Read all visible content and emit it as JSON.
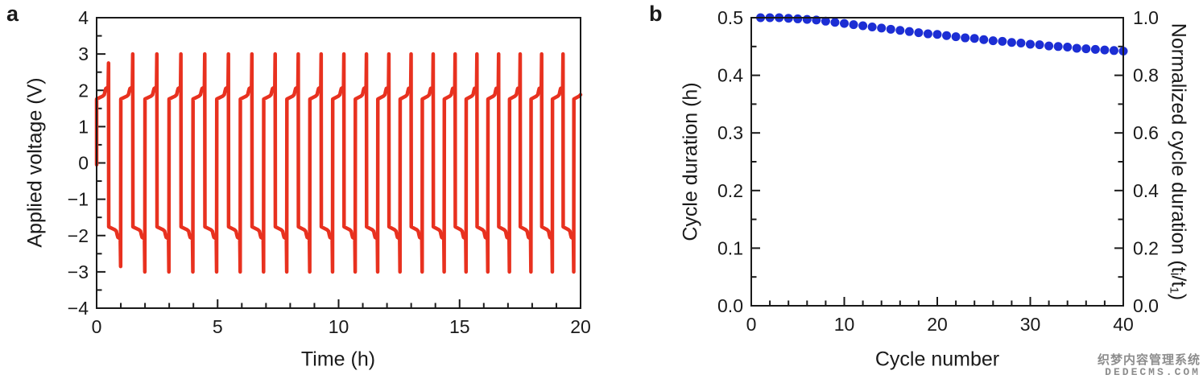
{
  "panels": {
    "a": {
      "label": "a",
      "xlabel": "Time (h)",
      "ylabel": "Applied voltage (V)"
    },
    "b": {
      "label": "b",
      "xlabel": "Cycle number",
      "ylabel_left": "Cycle duration (h)",
      "ylabel_right": "Normalized cycle duration (tᵢ/t₁)"
    }
  },
  "watermark": {
    "line1": "织梦内容管理系统",
    "line2": "DEDECMS.COM"
  },
  "colors": {
    "waveform_red": "#e8311f",
    "marker_blue": "#1c2ed4",
    "axis": "#1a1a1a"
  },
  "chart_data": [
    {
      "panel": "a",
      "type": "line",
      "title": "",
      "xlabel": "Time (h)",
      "ylabel": "Applied voltage (V)",
      "xlim": [
        0,
        20
      ],
      "ylim": [
        -4,
        4
      ],
      "grid": false,
      "legend": null,
      "x_ticks": {
        "values": [
          0,
          5,
          10,
          15,
          20
        ],
        "labels": [
          "0",
          "5",
          "10",
          "15",
          "20"
        ],
        "minor_step": 1
      },
      "y_ticks": {
        "values": [
          4,
          3,
          2,
          1,
          0,
          -1,
          -2,
          -3,
          -4
        ],
        "labels": [
          "4",
          "3",
          "2",
          "1",
          "0",
          "−1",
          "−2",
          "−3",
          "−4"
        ],
        "minor_step": 0.5
      },
      "series_color": "#e8311f",
      "description": "Alternating-polarity applied-voltage cycling: each half-cycle holds near ±1.8 V, ramps slightly, steps to ±2.1 V, then spikes to ±3 V before the polarity flips. Half-cycle durations equal the cycle durations of panel b (0.5 h shrinking to 0.44 h), repeating ~21 full periods over 20 h.",
      "waveform": {
        "initial_v": -0.05,
        "phase_shape": [
          [
            0,
            1.76
          ],
          [
            0.5,
            1.84
          ],
          [
            0.63,
            1.88
          ],
          [
            0.7,
            1.98
          ],
          [
            0.76,
            2.05
          ],
          [
            0.955,
            2.09
          ]
        ],
        "spike_frac": 0.985,
        "spike_v": 3.0,
        "first_pos_spike_v": 2.75,
        "first_neg_spike_v": 2.85,
        "half_cycle_durations_from": "chart_data[1].cycle_duration_h",
        "t_end": 20
      }
    },
    {
      "panel": "b",
      "type": "scatter",
      "title": "",
      "xlabel": "Cycle number",
      "ylabel_left": "Cycle duration (h)",
      "ylabel_right": "Normalized cycle duration (tᵢ/t₁)",
      "xlim": [
        0,
        40
      ],
      "ylim_left": [
        0,
        0.5
      ],
      "ylim_right": [
        0,
        1.0
      ],
      "grid": false,
      "legend": null,
      "x_ticks": {
        "values": [
          0,
          10,
          20,
          30,
          40
        ],
        "labels": [
          "0",
          "10",
          "20",
          "30",
          "40"
        ],
        "minor_step": 2
      },
      "y_left_ticks": {
        "values": [
          0.5,
          0.4,
          0.3,
          0.2,
          0.1,
          0.0
        ],
        "labels": [
          "0.5",
          "0.4",
          "0.3",
          "0.2",
          "0.1",
          "0.0"
        ],
        "minor_step": 0.05
      },
      "y_right_ticks": {
        "values": [
          1.0,
          0.8,
          0.6,
          0.4,
          0.2,
          0.0
        ],
        "labels": [
          "1.0",
          "0.8",
          "0.6",
          "0.4",
          "0.2",
          "0.0"
        ],
        "minor_step": 0.1
      },
      "marker_color": "#1c2ed4",
      "x": [
        1,
        2,
        3,
        4,
        5,
        6,
        7,
        8,
        9,
        10,
        11,
        12,
        13,
        14,
        15,
        16,
        17,
        18,
        19,
        20,
        21,
        22,
        23,
        24,
        25,
        26,
        27,
        28,
        29,
        30,
        31,
        32,
        33,
        34,
        35,
        36,
        37,
        38,
        39,
        40
      ],
      "cycle_duration_h": [
        0.5,
        0.5,
        0.5,
        0.499,
        0.498,
        0.497,
        0.496,
        0.494,
        0.492,
        0.49,
        0.488,
        0.486,
        0.484,
        0.482,
        0.48,
        0.478,
        0.476,
        0.474,
        0.472,
        0.471,
        0.469,
        0.467,
        0.465,
        0.464,
        0.462,
        0.46,
        0.459,
        0.457,
        0.456,
        0.454,
        0.453,
        0.451,
        0.45,
        0.449,
        0.447,
        0.446,
        0.445,
        0.444,
        0.443,
        0.442
      ],
      "normalized_cycle_duration": [
        1.0,
        1.0,
        1.0,
        0.998,
        0.996,
        0.994,
        0.992,
        0.988,
        0.984,
        0.98,
        0.976,
        0.972,
        0.968,
        0.964,
        0.96,
        0.956,
        0.952,
        0.948,
        0.944,
        0.942,
        0.938,
        0.934,
        0.93,
        0.928,
        0.924,
        0.92,
        0.918,
        0.914,
        0.912,
        0.908,
        0.906,
        0.902,
        0.9,
        0.898,
        0.894,
        0.892,
        0.89,
        0.888,
        0.886,
        0.884
      ]
    }
  ]
}
